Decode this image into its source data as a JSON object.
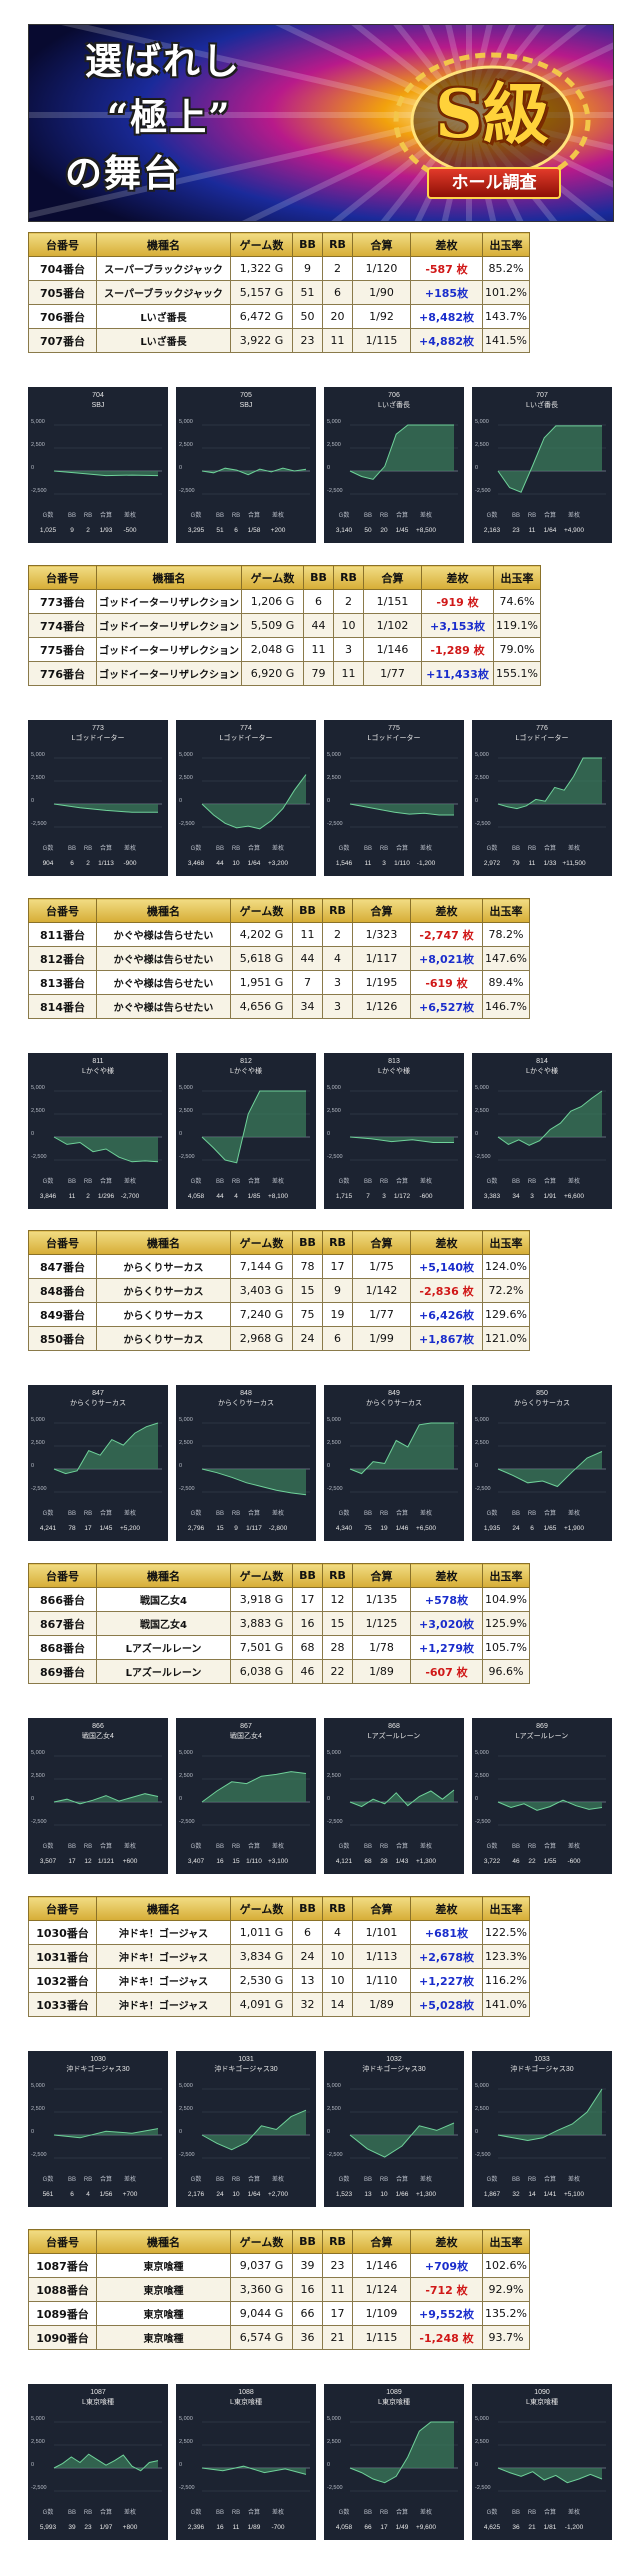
{
  "banner": {
    "title_line1": "選ばれし",
    "title_line2": "“極上”",
    "title_line3": "の舞台",
    "badge_main": "S級",
    "badge_sub": "ホール調査"
  },
  "headers": [
    "台番号",
    "機種名",
    "ゲーム数",
    "BB",
    "RB",
    "合算",
    "差枚",
    "出玉率"
  ],
  "chart_labels": {
    "stat_headers": [
      "G数",
      "BB",
      "RB",
      "合算",
      "差枚"
    ],
    "y_ticks": [
      "5,000",
      "2,500",
      "0",
      "-2,500"
    ]
  },
  "colors": {
    "header_gold": "#e6c455",
    "positive": "#1a2dcc",
    "negative": "#d01818",
    "chart_bg": "#1c2331",
    "chart_fill": "#3a7a5a",
    "chart_line": "#6fd29a"
  },
  "sections": [
    {
      "rows": [
        {
          "no": "704番台",
          "name": "スーパーブラックジャック",
          "games": "1,322 G",
          "bb": "9",
          "rb": "2",
          "ratio": "1/120",
          "diff": "-587 枚",
          "rate": "85.2%"
        },
        {
          "no": "705番台",
          "name": "スーパーブラックジャック",
          "games": "5,157 G",
          "bb": "51",
          "rb": "6",
          "ratio": "1/90",
          "diff": "+185枚",
          "rate": "101.2%"
        },
        {
          "no": "706番台",
          "name": "Lいざ番長",
          "games": "6,472 G",
          "bb": "50",
          "rb": "20",
          "ratio": "1/92",
          "diff": "+8,482枚",
          "rate": "143.7%"
        },
        {
          "no": "707番台",
          "name": "Lいざ番長",
          "games": "3,922 G",
          "bb": "23",
          "rb": "11",
          "ratio": "1/115",
          "diff": "+4,882枚",
          "rate": "141.5%"
        }
      ],
      "charts": [
        {
          "no": "704",
          "name": "SBJ",
          "stats": [
            "1,025",
            "9",
            "2",
            "1/93",
            "-500"
          ],
          "series": [
            0,
            -250,
            -500,
            -450,
            -500
          ]
        },
        {
          "no": "705",
          "name": "SBJ",
          "stats": [
            "3,295",
            "51",
            "6",
            "1/58",
            "+200"
          ],
          "series": [
            0,
            -200,
            300,
            100,
            -400,
            200,
            -100,
            300,
            0,
            200
          ]
        },
        {
          "no": "706",
          "name": "Lいざ番長",
          "stats": [
            "3,140",
            "50",
            "20",
            "1/45",
            "+8,500"
          ],
          "series": [
            0,
            -600,
            -900,
            500,
            4000,
            5000,
            5000,
            5000,
            5000,
            5000
          ]
        },
        {
          "no": "707",
          "name": "Lいざ番長",
          "stats": [
            "2,163",
            "23",
            "11",
            "1/64",
            "+4,900"
          ],
          "series": [
            0,
            -1800,
            -2300,
            600,
            3600,
            4900,
            4900,
            4900,
            4900,
            4900
          ]
        }
      ]
    },
    {
      "rows": [
        {
          "no": "773番台",
          "name": "ゴッドイーターリザレクション",
          "games": "1,206 G",
          "bb": "6",
          "rb": "2",
          "ratio": "1/151",
          "diff": "-919 枚",
          "rate": "74.6%"
        },
        {
          "no": "774番台",
          "name": "ゴッドイーターリザレクション",
          "games": "5,509 G",
          "bb": "44",
          "rb": "10",
          "ratio": "1/102",
          "diff": "+3,153枚",
          "rate": "119.1%"
        },
        {
          "no": "775番台",
          "name": "ゴッドイーターリザレクション",
          "games": "2,048 G",
          "bb": "11",
          "rb": "3",
          "ratio": "1/146",
          "diff": "-1,289 枚",
          "rate": "79.0%"
        },
        {
          "no": "776番台",
          "name": "ゴッドイーターリザレクション",
          "games": "6,920 G",
          "bb": "79",
          "rb": "11",
          "ratio": "1/77",
          "diff": "+11,433枚",
          "rate": "155.1%"
        }
      ],
      "charts": [
        {
          "no": "773",
          "name": "Lゴッドイーター",
          "stats": [
            "904",
            "6",
            "2",
            "1/113",
            "-900"
          ],
          "series": [
            0,
            -400,
            -700,
            -900,
            -900
          ]
        },
        {
          "no": "774",
          "name": "Lゴッドイーター",
          "stats": [
            "3,468",
            "44",
            "10",
            "1/64",
            "+3,200"
          ],
          "series": [
            0,
            -1200,
            -2100,
            -2600,
            -2400,
            -2700,
            -1800,
            -500,
            1500,
            3200
          ]
        },
        {
          "no": "775",
          "name": "Lゴッドイーター",
          "stats": [
            "1,546",
            "11",
            "3",
            "1/110",
            "-1,200"
          ],
          "series": [
            0,
            -300,
            -600,
            -900,
            -1100,
            -1000,
            -1200,
            -1200
          ]
        },
        {
          "no": "776",
          "name": "Lゴッドイーター",
          "stats": [
            "2,972",
            "79",
            "11",
            "1/33",
            "+11,500"
          ],
          "series": [
            0,
            -300,
            -500,
            -200,
            500,
            300,
            1800,
            1500,
            3000,
            5000,
            5000,
            5000
          ]
        }
      ]
    },
    {
      "rows": [
        {
          "no": "811番台",
          "name": "かぐや様は告らせたい",
          "games": "4,202 G",
          "bb": "11",
          "rb": "2",
          "ratio": "1/323",
          "diff": "-2,747 枚",
          "rate": "78.2%"
        },
        {
          "no": "812番台",
          "name": "かぐや様は告らせたい",
          "games": "5,618 G",
          "bb": "44",
          "rb": "4",
          "ratio": "1/117",
          "diff": "+8,021枚",
          "rate": "147.6%"
        },
        {
          "no": "813番台",
          "name": "かぐや様は告らせたい",
          "games": "1,951 G",
          "bb": "7",
          "rb": "3",
          "ratio": "1/195",
          "diff": "-619 枚",
          "rate": "89.4%"
        },
        {
          "no": "814番台",
          "name": "かぐや様は告らせたい",
          "games": "4,656 G",
          "bb": "34",
          "rb": "3",
          "ratio": "1/126",
          "diff": "+6,527枚",
          "rate": "146.7%"
        }
      ],
      "charts": [
        {
          "no": "811",
          "name": "Lかぐや様",
          "stats": [
            "3,846",
            "11",
            "2",
            "1/296",
            "-2,700"
          ],
          "series": [
            0,
            -800,
            -600,
            -1600,
            -1300,
            -2200,
            -2700,
            -2600,
            -2700
          ]
        },
        {
          "no": "812",
          "name": "Lかぐや様",
          "stats": [
            "4,058",
            "44",
            "4",
            "1/85",
            "+8,100"
          ],
          "series": [
            0,
            -1200,
            -2500,
            -2800,
            2500,
            5000,
            5000,
            5000,
            5000,
            5000
          ]
        },
        {
          "no": "813",
          "name": "Lかぐや様",
          "stats": [
            "1,715",
            "7",
            "3",
            "1/172",
            "-600"
          ],
          "series": [
            0,
            -200,
            -500,
            -300,
            -600,
            -600
          ]
        },
        {
          "no": "814",
          "name": "Lかぐや様",
          "stats": [
            "3,383",
            "34",
            "3",
            "1/91",
            "+6,600"
          ],
          "series": [
            0,
            -800,
            -300,
            -900,
            -400,
            800,
            1500,
            2800,
            3300,
            4200,
            5000
          ]
        }
      ]
    },
    {
      "rows": [
        {
          "no": "847番台",
          "name": "からくりサーカス",
          "games": "7,144 G",
          "bb": "78",
          "rb": "17",
          "ratio": "1/75",
          "diff": "+5,140枚",
          "rate": "124.0%"
        },
        {
          "no": "848番台",
          "name": "からくりサーカス",
          "games": "3,403 G",
          "bb": "15",
          "rb": "9",
          "ratio": "1/142",
          "diff": "-2,836 枚",
          "rate": "72.2%"
        },
        {
          "no": "849番台",
          "name": "からくりサーカス",
          "games": "7,240 G",
          "bb": "75",
          "rb": "19",
          "ratio": "1/77",
          "diff": "+6,426枚",
          "rate": "129.6%"
        },
        {
          "no": "850番台",
          "name": "からくりサーカス",
          "games": "2,968 G",
          "bb": "24",
          "rb": "6",
          "ratio": "1/99",
          "diff": "+1,867枚",
          "rate": "121.0%"
        }
      ],
      "charts": [
        {
          "no": "847",
          "name": "からくりサーカス",
          "stats": [
            "4,241",
            "78",
            "17",
            "1/45",
            "+5,200"
          ],
          "series": [
            0,
            -500,
            -200,
            2000,
            1500,
            3200,
            2600,
            3900,
            4600,
            5000
          ]
        },
        {
          "no": "848",
          "name": "からくりサーカス",
          "stats": [
            "2,796",
            "15",
            "9",
            "1/117",
            "-2,800"
          ],
          "series": [
            0,
            -400,
            -900,
            -1500,
            -1900,
            -2300,
            -2600,
            -2800
          ]
        },
        {
          "no": "849",
          "name": "からくりサーカス",
          "stats": [
            "4,340",
            "75",
            "19",
            "1/46",
            "+6,500"
          ],
          "series": [
            0,
            -500,
            800,
            600,
            3100,
            2400,
            4800,
            5000,
            5000,
            5000
          ]
        },
        {
          "no": "850",
          "name": "からくりサーカス",
          "stats": [
            "1,935",
            "24",
            "6",
            "1/65",
            "+1,900"
          ],
          "series": [
            0,
            -700,
            -1500,
            -1300,
            -1900,
            -300,
            1200,
            1900
          ]
        }
      ]
    },
    {
      "rows": [
        {
          "no": "866番台",
          "name": "戦国乙女4",
          "games": "3,918 G",
          "bb": "17",
          "rb": "12",
          "ratio": "1/135",
          "diff": "+578枚",
          "rate": "104.9%"
        },
        {
          "no": "867番台",
          "name": "戦国乙女4",
          "games": "3,883 G",
          "bb": "16",
          "rb": "15",
          "ratio": "1/125",
          "diff": "+3,020枚",
          "rate": "125.9%"
        },
        {
          "no": "868番台",
          "name": "Lアズールレーン",
          "games": "7,501 G",
          "bb": "68",
          "rb": "28",
          "ratio": "1/78",
          "diff": "+1,279枚",
          "rate": "105.7%"
        },
        {
          "no": "869番台",
          "name": "Lアズールレーン",
          "games": "6,038 G",
          "bb": "46",
          "rb": "22",
          "ratio": "1/89",
          "diff": "-607 枚",
          "rate": "96.6%"
        }
      ],
      "charts": [
        {
          "no": "866",
          "name": "戦国乙女4",
          "stats": [
            "3,507",
            "17",
            "12",
            "1/121",
            "+600"
          ],
          "series": [
            0,
            300,
            -200,
            200,
            700,
            100,
            500,
            900,
            600
          ]
        },
        {
          "no": "867",
          "name": "戦国乙女4",
          "stats": [
            "3,407",
            "16",
            "15",
            "1/110",
            "+3,100"
          ],
          "series": [
            0,
            1200,
            2200,
            2000,
            2800,
            3000,
            3300,
            3100
          ]
        },
        {
          "no": "868",
          "name": "Lアズールレーン",
          "stats": [
            "4,121",
            "68",
            "28",
            "1/43",
            "+1,300"
          ],
          "series": [
            0,
            -500,
            300,
            -200,
            1000,
            -400,
            600,
            1200,
            300,
            1300
          ]
        },
        {
          "no": "869",
          "name": "Lアズールレーン",
          "stats": [
            "3,722",
            "46",
            "22",
            "1/55",
            "-600"
          ],
          "series": [
            0,
            -600,
            -200,
            -900,
            -500,
            200,
            -400,
            -800,
            -600
          ]
        }
      ]
    },
    {
      "rows": [
        {
          "no": "1030番台",
          "name": "沖ドキ！ゴージャス",
          "games": "1,011 G",
          "bb": "6",
          "rb": "4",
          "ratio": "1/101",
          "diff": "+681枚",
          "rate": "122.5%"
        },
        {
          "no": "1031番台",
          "name": "沖ドキ！ゴージャス",
          "games": "3,834 G",
          "bb": "24",
          "rb": "10",
          "ratio": "1/113",
          "diff": "+2,678枚",
          "rate": "123.3%"
        },
        {
          "no": "1032番台",
          "name": "沖ドキ！ゴージャス",
          "games": "2,530 G",
          "bb": "13",
          "rb": "10",
          "ratio": "1/110",
          "diff": "+1,227枚",
          "rate": "116.2%"
        },
        {
          "no": "1033番台",
          "name": "沖ドキ！ゴージャス",
          "games": "4,091 G",
          "bb": "32",
          "rb": "14",
          "ratio": "1/89",
          "diff": "+5,028枚",
          "rate": "141.0%"
        }
      ],
      "charts": [
        {
          "no": "1030",
          "name": "沖ドキゴージャス30",
          "stats": [
            "561",
            "6",
            "4",
            "1/56",
            "+700"
          ],
          "series": [
            0,
            -300,
            400,
            200,
            700
          ]
        },
        {
          "no": "1031",
          "name": "沖ドキゴージャス30",
          "stats": [
            "2,176",
            "24",
            "10",
            "1/64",
            "+2,700"
          ],
          "series": [
            0,
            -900,
            -1600,
            -800,
            1000,
            600,
            2000,
            2700
          ]
        },
        {
          "no": "1032",
          "name": "沖ドキゴージャス30",
          "stats": [
            "1,523",
            "13",
            "10",
            "1/66",
            "+1,300"
          ],
          "series": [
            0,
            -1500,
            -2400,
            -1200,
            1000,
            500,
            1300
          ]
        },
        {
          "no": "1033",
          "name": "沖ドキゴージャス30",
          "stats": [
            "1,867",
            "32",
            "14",
            "1/41",
            "+5,100"
          ],
          "series": [
            0,
            -300,
            -600,
            -300,
            500,
            1200,
            2500,
            5000
          ]
        }
      ]
    },
    {
      "rows": [
        {
          "no": "1087番台",
          "name": "東京喰種",
          "games": "9,037 G",
          "bb": "39",
          "rb": "23",
          "ratio": "1/146",
          "diff": "+709枚",
          "rate": "102.6%"
        },
        {
          "no": "1088番台",
          "name": "東京喰種",
          "games": "3,360 G",
          "bb": "16",
          "rb": "11",
          "ratio": "1/124",
          "diff": "-712 枚",
          "rate": "92.9%"
        },
        {
          "no": "1089番台",
          "name": "東京喰種",
          "games": "9,044 G",
          "bb": "66",
          "rb": "17",
          "ratio": "1/109",
          "diff": "+9,552枚",
          "rate": "135.2%"
        },
        {
          "no": "1090番台",
          "name": "東京喰種",
          "games": "6,574 G",
          "bb": "36",
          "rb": "21",
          "ratio": "1/115",
          "diff": "-1,248 枚",
          "rate": "93.7%"
        }
      ],
      "charts": [
        {
          "no": "1087",
          "name": "L東京喰種",
          "stats": [
            "5,993",
            "39",
            "23",
            "1/97",
            "+800"
          ],
          "series": [
            0,
            500,
            1200,
            600,
            1500,
            900,
            300,
            800,
            1400,
            200,
            -300,
            600,
            800
          ]
        },
        {
          "no": "1088",
          "name": "L東京喰種",
          "stats": [
            "2,396",
            "16",
            "11",
            "1/89",
            "-700"
          ],
          "series": [
            0,
            -300,
            200,
            -500,
            -100,
            -700
          ]
        },
        {
          "no": "1089",
          "name": "L東京喰種",
          "stats": [
            "4,058",
            "66",
            "17",
            "1/49",
            "+9,600"
          ],
          "series": [
            0,
            -500,
            -1200,
            -1600,
            -900,
            1200,
            4000,
            5000,
            5000,
            5000
          ]
        },
        {
          "no": "1090",
          "name": "L東京喰種",
          "stats": [
            "4,625",
            "36",
            "21",
            "1/81",
            "-1,200"
          ],
          "series": [
            0,
            -500,
            -900,
            -400,
            -1300,
            -800,
            -1600,
            -1200,
            -700,
            -1200
          ]
        }
      ]
    }
  ]
}
